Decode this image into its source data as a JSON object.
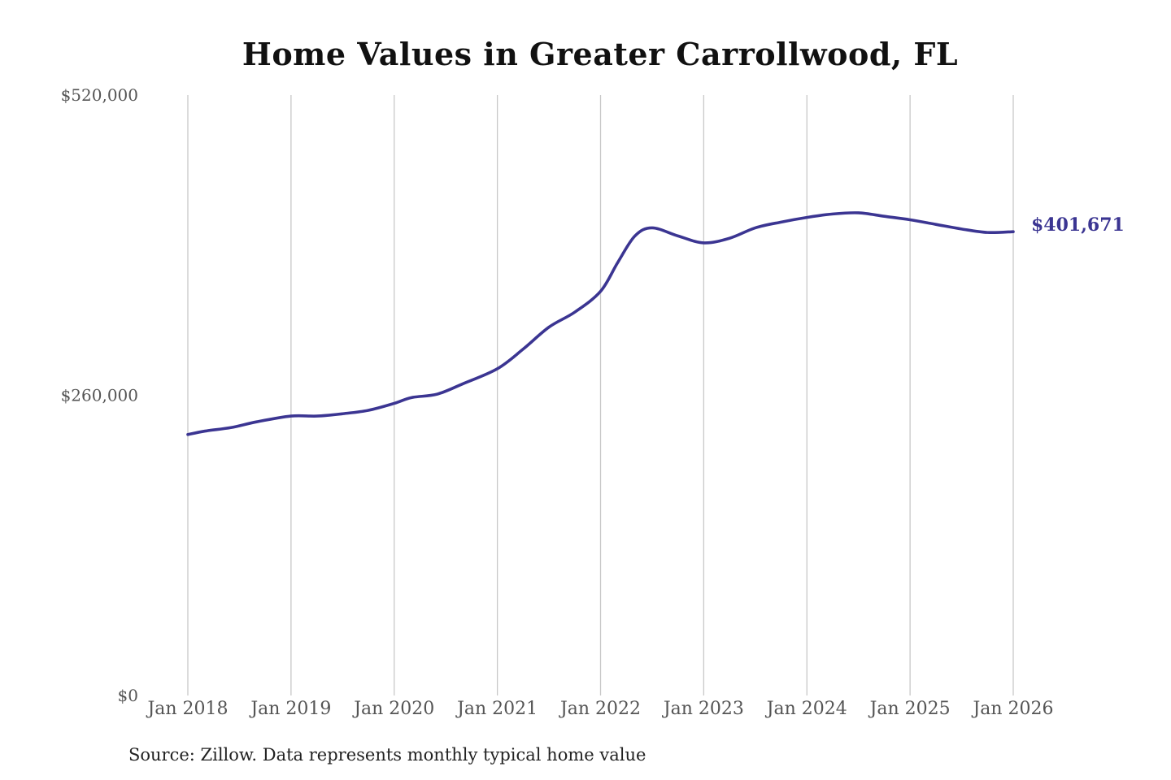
{
  "title": "Home Values in Greater Carrollwood, FL",
  "source": "Source: Zillow. Data represents monthly typical home value",
  "colors": {
    "line": "#3b3592",
    "grid": "#c8c8c8",
    "tick_text": "#555555"
  },
  "chart_data": {
    "type": "line",
    "title": "Home Values in Greater Carrollwood, FL",
    "xlabel": "",
    "ylabel": "",
    "ylim": [
      0,
      520000
    ],
    "xlim": [
      "2018-01",
      "2026-01"
    ],
    "grid": "vertical",
    "yticks": [
      {
        "value": 0,
        "label": "$0"
      },
      {
        "value": 260000,
        "label": "$260,000"
      },
      {
        "value": 520000,
        "label": "$520,000"
      }
    ],
    "xticks": [
      {
        "date": "2018-01",
        "label": "Jan 2018"
      },
      {
        "date": "2019-01",
        "label": "Jan 2019"
      },
      {
        "date": "2020-01",
        "label": "Jan 2020"
      },
      {
        "date": "2021-01",
        "label": "Jan 2021"
      },
      {
        "date": "2022-01",
        "label": "Jan 2022"
      },
      {
        "date": "2023-01",
        "label": "Jan 2023"
      },
      {
        "date": "2024-01",
        "label": "Jan 2024"
      },
      {
        "date": "2025-01",
        "label": "Jan 2025"
      },
      {
        "date": "2026-01",
        "label": "Jan 2026"
      }
    ],
    "end_label": "$401,671",
    "series": [
      {
        "points": [
          [
            "2018-01",
            226000
          ],
          [
            "2018-03",
            229000
          ],
          [
            "2018-06",
            232000
          ],
          [
            "2018-09",
            237000
          ],
          [
            "2019-01",
            242000
          ],
          [
            "2019-04",
            242000
          ],
          [
            "2019-07",
            244000
          ],
          [
            "2019-10",
            247000
          ],
          [
            "2020-01",
            253000
          ],
          [
            "2020-03",
            258000
          ],
          [
            "2020-06",
            261000
          ],
          [
            "2020-09",
            270000
          ],
          [
            "2021-01",
            283000
          ],
          [
            "2021-04",
            300000
          ],
          [
            "2021-07",
            319000
          ],
          [
            "2021-10",
            332000
          ],
          [
            "2022-01",
            350000
          ],
          [
            "2022-03",
            375000
          ],
          [
            "2022-05",
            398000
          ],
          [
            "2022-07",
            405000
          ],
          [
            "2022-10",
            398000
          ],
          [
            "2023-01",
            392000
          ],
          [
            "2023-04",
            396000
          ],
          [
            "2023-07",
            405000
          ],
          [
            "2023-10",
            410000
          ],
          [
            "2024-01",
            414000
          ],
          [
            "2024-04",
            417000
          ],
          [
            "2024-07",
            418000
          ],
          [
            "2024-10",
            415000
          ],
          [
            "2025-01",
            412000
          ],
          [
            "2025-04",
            408000
          ],
          [
            "2025-07",
            404000
          ],
          [
            "2025-10",
            401000
          ],
          [
            "2026-01",
            401671
          ]
        ]
      }
    ]
  }
}
